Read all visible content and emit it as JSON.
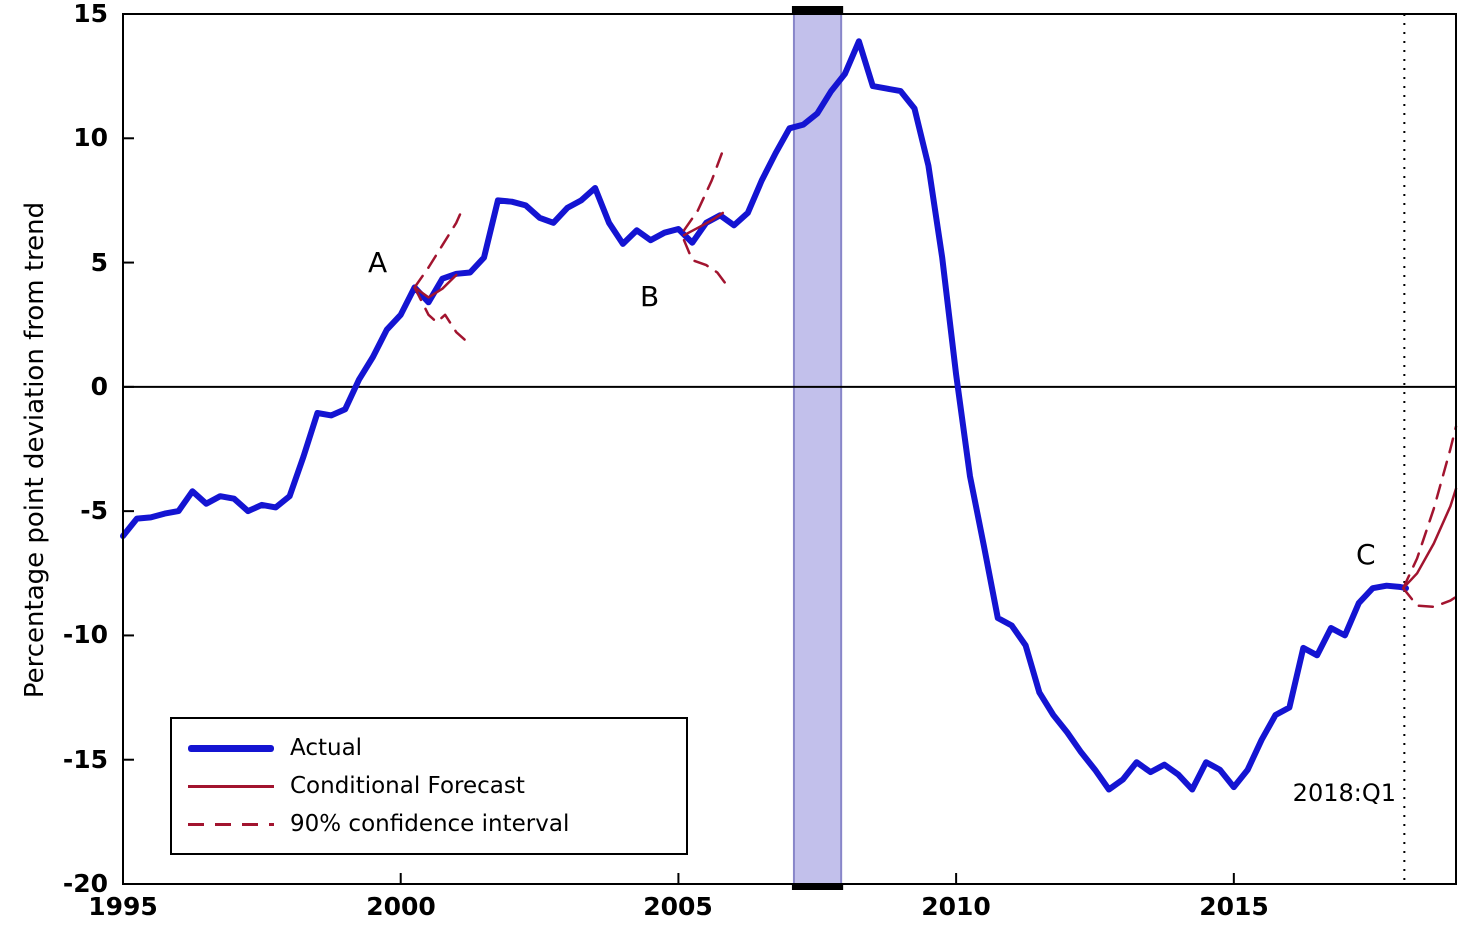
{
  "chart_data": {
    "type": "line",
    "title": "",
    "xlabel": "",
    "ylabel": "Percentage point deviation from trend",
    "xlim": [
      1995,
      2019
    ],
    "ylim": [
      -20,
      15
    ],
    "grid": false,
    "legend_position": "bottom-left",
    "xtick_vals": [
      1995,
      2000,
      2005,
      2010,
      2015
    ],
    "ytick_vals": [
      15,
      10,
      5,
      0,
      -5,
      -10,
      -15,
      -20
    ],
    "xticks": [
      "1995",
      "2000",
      "2005",
      "2010",
      "2015"
    ],
    "yticks": [
      "15",
      "10",
      "5",
      "0",
      "-5",
      "-10",
      "-15",
      "-20"
    ],
    "colors": {
      "actual": "#1414d2",
      "forecast": "#A2142F",
      "band_fill": "#b7b5e7",
      "band_edge": "#8886c9",
      "axis": "#000000"
    },
    "recession_band": {
      "x0": 2007.08,
      "x1": 2007.93
    },
    "forecast_vline": {
      "x": 2018.07,
      "label": "2018:Q1"
    },
    "annotations": [
      {
        "label": "A",
        "x": 1999.55,
        "y": 4.9
      },
      {
        "label": "B",
        "x": 2004.45,
        "y": 3.7
      },
      {
        "label": "C",
        "x": 2017.35,
        "y": -6.8
      }
    ],
    "legend": [
      {
        "label": "Actual",
        "style": "thick-blue-solid"
      },
      {
        "label": "Conditional Forecast",
        "style": "thin-darkred-solid"
      },
      {
        "label": "90% confidence interval",
        "style": "darkred-dashed"
      }
    ],
    "series": [
      {
        "name": "actual",
        "color": "actual",
        "width": 6,
        "dash": false,
        "x": [
          1995.0,
          1995.25,
          1995.5,
          1995.75,
          1996.0,
          1996.25,
          1996.5,
          1996.75,
          1997.0,
          1997.25,
          1997.5,
          1997.75,
          1998.0,
          1998.25,
          1998.5,
          1998.75,
          1999.0,
          1999.25,
          1999.5,
          1999.75,
          2000.0,
          2000.25,
          2000.5,
          2000.75,
          2001.0,
          2001.25,
          2001.5,
          2001.75,
          2002.0,
          2002.25,
          2002.5,
          2002.75,
          2003.0,
          2003.25,
          2003.5,
          2003.75,
          2004.0,
          2004.25,
          2004.5,
          2004.75,
          2005.0,
          2005.25,
          2005.5,
          2005.75,
          2006.0,
          2006.25,
          2006.5,
          2006.75,
          2007.0,
          2007.25,
          2007.5,
          2007.75,
          2008.0,
          2008.25,
          2008.5,
          2008.75,
          2009.0,
          2009.25,
          2009.5,
          2009.75,
          2010.0,
          2010.25,
          2010.5,
          2010.75,
          2011.0,
          2011.25,
          2011.5,
          2011.75,
          2012.0,
          2012.25,
          2012.5,
          2012.75,
          2013.0,
          2013.25,
          2013.5,
          2013.75,
          2014.0,
          2014.25,
          2014.5,
          2014.75,
          2015.0,
          2015.25,
          2015.5,
          2015.75,
          2016.0,
          2016.25,
          2016.5,
          2016.75,
          2017.0,
          2017.25,
          2017.5,
          2017.75,
          2018.0,
          2018.1
        ],
        "y": [
          -6.0,
          -5.3,
          -5.25,
          -5.1,
          -5.0,
          -4.2,
          -4.7,
          -4.4,
          -4.5,
          -5.0,
          -4.75,
          -4.85,
          -4.4,
          -2.8,
          -1.05,
          -1.15,
          -0.9,
          0.3,
          1.2,
          2.3,
          2.9,
          4.0,
          3.4,
          4.35,
          4.55,
          4.6,
          5.2,
          7.5,
          7.45,
          7.3,
          6.8,
          6.6,
          7.2,
          7.5,
          8.0,
          6.6,
          5.75,
          6.3,
          5.9,
          6.2,
          6.35,
          5.8,
          6.6,
          6.9,
          6.5,
          7.0,
          8.3,
          9.4,
          10.4,
          10.55,
          11.0,
          11.9,
          12.6,
          13.9,
          12.1,
          12.0,
          11.9,
          11.2,
          8.9,
          5.2,
          0.5,
          -3.6,
          -6.4,
          -9.3,
          -9.6,
          -10.4,
          -12.3,
          -13.2,
          -13.9,
          -14.7,
          -15.4,
          -16.2,
          -15.8,
          -15.1,
          -15.5,
          -15.2,
          -15.6,
          -16.2,
          -15.1,
          -15.4,
          -16.1,
          -15.4,
          -14.2,
          -13.2,
          -12.9,
          -10.5,
          -10.8,
          -9.7,
          -10.0,
          -8.7,
          -8.1,
          -8.0,
          -8.05,
          -8.1
        ]
      },
      {
        "name": "forecast-a-central",
        "color": "forecast",
        "width": 2.5,
        "dash": false,
        "x": [
          2000.25,
          2000.5,
          2000.75,
          2001.0
        ],
        "y": [
          4.0,
          3.6,
          3.95,
          4.5
        ]
      },
      {
        "name": "forecast-a-upper",
        "color": "forecast",
        "width": 2.5,
        "dash": true,
        "x": [
          2000.25,
          2000.5,
          2000.75,
          2001.0,
          2001.1
        ],
        "y": [
          4.0,
          4.8,
          5.7,
          6.6,
          7.1
        ]
      },
      {
        "name": "forecast-a-lower",
        "color": "forecast",
        "width": 2.5,
        "dash": true,
        "x": [
          2000.25,
          2000.5,
          2000.65,
          2000.8,
          2001.0,
          2001.15
        ],
        "y": [
          4.0,
          2.9,
          2.6,
          2.9,
          2.2,
          1.9
        ]
      },
      {
        "name": "forecast-b-central",
        "color": "forecast",
        "width": 2.5,
        "dash": false,
        "x": [
          2005.1,
          2005.35,
          2005.6,
          2005.8
        ],
        "y": [
          6.1,
          6.4,
          6.7,
          7.0
        ]
      },
      {
        "name": "forecast-b-upper",
        "color": "forecast",
        "width": 2.5,
        "dash": true,
        "x": [
          2005.1,
          2005.35,
          2005.6,
          2005.8
        ],
        "y": [
          6.3,
          7.1,
          8.3,
          9.5
        ]
      },
      {
        "name": "forecast-b-lower",
        "color": "forecast",
        "width": 2.5,
        "dash": true,
        "x": [
          2005.1,
          2005.25,
          2005.5,
          2005.7,
          2005.9
        ],
        "y": [
          5.9,
          5.1,
          4.9,
          4.6,
          4.0
        ]
      },
      {
        "name": "forecast-c-central",
        "color": "forecast",
        "width": 2.5,
        "dash": false,
        "x": [
          2018.05,
          2018.3,
          2018.6,
          2018.9,
          2019.0
        ],
        "y": [
          -8.1,
          -7.5,
          -6.3,
          -4.8,
          -4.1
        ]
      },
      {
        "name": "forecast-c-upper",
        "color": "forecast",
        "width": 2.5,
        "dash": true,
        "x": [
          2018.05,
          2018.3,
          2018.6,
          2018.9,
          2019.0
        ],
        "y": [
          -8.1,
          -6.9,
          -4.9,
          -2.5,
          -1.6
        ]
      },
      {
        "name": "forecast-c-lower",
        "color": "forecast",
        "width": 2.5,
        "dash": true,
        "x": [
          2018.05,
          2018.3,
          2018.6,
          2018.9,
          2019.0
        ],
        "y": [
          -8.1,
          -8.8,
          -8.85,
          -8.6,
          -8.45
        ]
      }
    ]
  }
}
